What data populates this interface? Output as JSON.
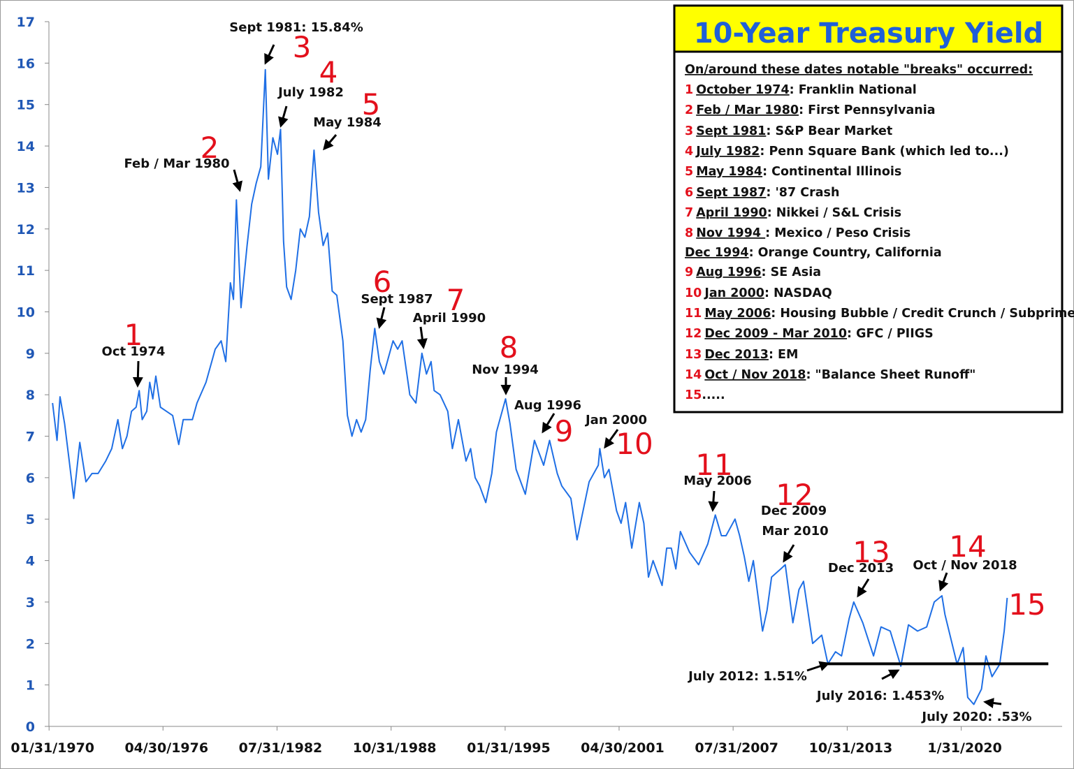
{
  "chart_data": {
    "type": "line",
    "title": "10-Year Treasury Yield",
    "color": "#1f6fe5",
    "x": [
      "01/31/1970",
      "04/30/1970",
      "06/30/1970",
      "09/30/1970",
      "12/31/1970",
      "03/31/1971",
      "07/31/1971",
      "11/30/1971",
      "03/31/1972",
      "07/31/1972",
      "12/31/1972",
      "04/30/1973",
      "08/31/1973",
      "11/30/1973",
      "02/28/1974",
      "05/31/1974",
      "08/31/1974",
      "10/31/1974",
      "12/31/1974",
      "03/31/1975",
      "05/31/1975",
      "07/31/1975",
      "09/30/1975",
      "12/31/1975",
      "04/30/1976",
      "08/31/1976",
      "12/31/1976",
      "03/31/1977",
      "09/30/1977",
      "12/31/1977",
      "06/30/1978",
      "12/31/1978",
      "04/30/1979",
      "07/31/1979",
      "10/31/1979",
      "12/31/1979",
      "02/29/1980",
      "05/31/1980",
      "09/30/1980",
      "12/31/1980",
      "03/31/1981",
      "06/30/1981",
      "09/30/1981",
      "11/30/1981",
      "02/28/1982",
      "05/31/1982",
      "07/31/1982",
      "09/30/1982",
      "11/30/1982",
      "02/28/1983",
      "05/31/1983",
      "08/31/1983",
      "11/30/1983",
      "02/29/1984",
      "05/31/1984",
      "08/31/1984",
      "11/30/1984",
      "02/28/1985",
      "05/31/1985",
      "08/31/1985",
      "12/31/1985",
      "03/31/1986",
      "06/30/1986",
      "09/30/1986",
      "12/31/1986",
      "03/31/1987",
      "06/30/1987",
      "09/30/1987",
      "12/31/1987",
      "03/31/1988",
      "06/30/1988",
      "09/30/1988",
      "12/31/1988",
      "03/31/1989",
      "08/31/1989",
      "12/31/1989",
      "04/30/1990",
      "07/31/1990",
      "10/31/1990",
      "12/31/1990",
      "04/30/1991",
      "09/30/1991",
      "12/31/1991",
      "04/30/1992",
      "09/30/1992",
      "12/31/1992",
      "03/31/1993",
      "06/30/1993",
      "10/31/1993",
      "02/28/1994",
      "05/31/1994",
      "11/30/1994",
      "02/28/1995",
      "06/30/1995",
      "12/31/1995",
      "06/30/1996",
      "08/31/1996",
      "12/31/1996",
      "04/30/1997",
      "09/30/1997",
      "12/31/1997",
      "06/30/1998",
      "10/31/1998",
      "02/28/1999",
      "06/30/1999",
      "12/31/1999",
      "01/31/2000",
      "04/30/2000",
      "07/31/2000",
      "12/31/2000",
      "03/31/2001",
      "06/30/2001",
      "10/31/2001",
      "03/31/2002",
      "06/30/2002",
      "09/30/2002",
      "12/31/2002",
      "06/30/2003",
      "09/30/2003",
      "12/31/2003",
      "03/31/2004",
      "06/30/2004",
      "12/31/2004",
      "06/30/2005",
      "12/31/2005",
      "05/31/2006",
      "09/30/2006",
      "12/31/2006",
      "06/30/2007",
      "09/30/2007",
      "12/31/2007",
      "03/31/2008",
      "06/30/2008",
      "12/31/2008",
      "03/31/2009",
      "06/30/2009",
      "12/31/2009",
      "03/31/2010",
      "08/31/2010",
      "12/31/2010",
      "03/31/2011",
      "09/30/2011",
      "03/31/2012",
      "07/31/2012",
      "12/31/2012",
      "04/30/2013",
      "09/30/2013",
      "12/31/2013",
      "06/30/2014",
      "01/31/2015",
      "06/30/2015",
      "12/31/2015",
      "07/31/2016",
      "12/31/2016",
      "06/30/2017",
      "12/31/2017",
      "05/31/2018",
      "10/31/2018",
      "12/31/2018",
      "08/31/2019",
      "12/31/2019",
      "03/31/2020",
      "07/31/2020",
      "12/31/2020",
      "03/31/2021",
      "07/31/2021",
      "12/31/2021",
      "03/31/2022",
      "05/31/2022"
    ],
    "values": [
      7.8,
      6.9,
      7.95,
      7.3,
      6.4,
      5.5,
      6.85,
      5.9,
      6.1,
      6.1,
      6.4,
      6.7,
      7.4,
      6.7,
      7.0,
      7.6,
      7.7,
      8.1,
      7.4,
      7.6,
      8.3,
      7.9,
      8.45,
      7.7,
      7.6,
      7.5,
      6.8,
      7.4,
      7.4,
      7.8,
      8.3,
      9.1,
      9.3,
      8.8,
      10.7,
      10.3,
      12.7,
      10.1,
      11.6,
      12.6,
      13.1,
      13.5,
      15.84,
      13.2,
      14.2,
      13.8,
      14.4,
      11.7,
      10.6,
      10.3,
      11.0,
      12.0,
      11.8,
      12.3,
      13.9,
      12.4,
      11.6,
      11.9,
      10.5,
      10.4,
      9.3,
      7.5,
      7.0,
      7.4,
      7.1,
      7.4,
      8.6,
      9.6,
      8.8,
      8.5,
      8.9,
      9.3,
      9.1,
      9.3,
      8.0,
      7.8,
      9.0,
      8.5,
      8.8,
      8.1,
      8.0,
      7.6,
      6.7,
      7.4,
      6.4,
      6.7,
      6.0,
      5.8,
      5.4,
      6.1,
      7.1,
      7.9,
      7.3,
      6.2,
      5.6,
      6.9,
      6.7,
      6.3,
      6.9,
      6.1,
      5.8,
      5.5,
      4.5,
      5.2,
      5.9,
      6.3,
      6.7,
      6.0,
      6.2,
      5.2,
      4.9,
      5.4,
      4.3,
      5.4,
      4.9,
      3.6,
      4.0,
      3.4,
      4.3,
      4.3,
      3.8,
      4.7,
      4.2,
      3.9,
      4.4,
      5.1,
      4.6,
      4.6,
      5.0,
      4.6,
      4.1,
      3.5,
      4.0,
      2.3,
      2.8,
      3.6,
      3.8,
      3.9,
      2.5,
      3.3,
      3.5,
      2.0,
      2.2,
      1.51,
      1.8,
      1.7,
      2.6,
      3.0,
      2.5,
      1.7,
      2.4,
      2.3,
      1.453,
      2.45,
      2.3,
      2.4,
      3.0,
      3.15,
      2.7,
      1.5,
      1.9,
      0.7,
      0.53,
      0.9,
      1.7,
      1.2,
      1.5,
      2.3,
      3.1
    ],
    "xlim": [
      "12/31/1969",
      "12/31/2024"
    ],
    "xticks": [
      "01/31/1970",
      "04/30/1976",
      "07/31/1982",
      "10/31/1988",
      "01/31/1995",
      "04/30/2001",
      "07/31/2007",
      "10/31/2013",
      "1/31/2020"
    ],
    "ylim": [
      0,
      17
    ],
    "yticks": [
      0,
      1,
      2,
      3,
      4,
      5,
      6,
      7,
      8,
      9,
      10,
      11,
      12,
      13,
      14,
      15,
      16,
      17
    ],
    "reference_line": {
      "y": 1.51,
      "x": [
        "07/31/2012",
        "08/31/2024"
      ],
      "color": "#000000"
    },
    "annotations": [
      "Oct 1974",
      "Feb / Mar 1980",
      "Sept 1981: 15.84%",
      "July 1982",
      "May 1984",
      "Sept 1987",
      "April 1990",
      "Nov 1994",
      "Aug 1996",
      "Jan 2000",
      "May 2006",
      "Dec 2009",
      "Mar 2010",
      "Dec 2013",
      "Oct / Nov 2018",
      "July 2012: 1.51%",
      "July 2016: 1.453%",
      "July 2020: .53%"
    ],
    "markers": [
      "1",
      "2",
      "3",
      "4",
      "5",
      "6",
      "7",
      "8",
      "9",
      "10",
      "11",
      "12",
      "13",
      "14",
      "15"
    ],
    "legend_box": {
      "heading": "On/around these dates notable \"breaks\" occurred:",
      "items": [
        {
          "num": "1",
          "date": "October 1974",
          "text": ": Franklin National"
        },
        {
          "num": "2",
          "date": "Feb / Mar 1980",
          "text": ": First Pennsylvania"
        },
        {
          "num": "3",
          "date": "Sept 1981",
          "text": ": S&P Bear Market"
        },
        {
          "num": "4",
          "date": "July 1982",
          "text": ": Penn Square Bank (which led to...)"
        },
        {
          "num": "5",
          "date": "May 1984",
          "text": ": Continental Illinois"
        },
        {
          "num": "6",
          "date": "Sept 1987",
          "text": ": '87 Crash"
        },
        {
          "num": "7",
          "date": "April 1990",
          "text": ": Nikkei / S&L Crisis"
        },
        {
          "num": "8",
          "date": "Nov 1994 ",
          "text": ": Mexico / Peso Crisis"
        },
        {
          "date": "Dec 1994",
          "text": ": Orange Country, California"
        },
        {
          "num": "9",
          "date": "Aug 1996",
          "text": ": SE Asia"
        },
        {
          "num": "10",
          "date": "Jan 2000",
          "text": ": NASDAQ"
        },
        {
          "num": "11",
          "date": "May 2006",
          "text": ": Housing Bubble / Credit Crunch / Subprime"
        },
        {
          "num": "12",
          "date": "Dec 2009 - Mar 2010",
          "text": ": GFC / PIIGS"
        },
        {
          "num": "13",
          "date": "Dec 2013",
          "text": ": EM"
        },
        {
          "num": "14",
          "date": "Oct / Nov 2018",
          "text": ": \"Balance Sheet Runoff\""
        },
        {
          "num": "15",
          "text": "....."
        }
      ]
    }
  }
}
